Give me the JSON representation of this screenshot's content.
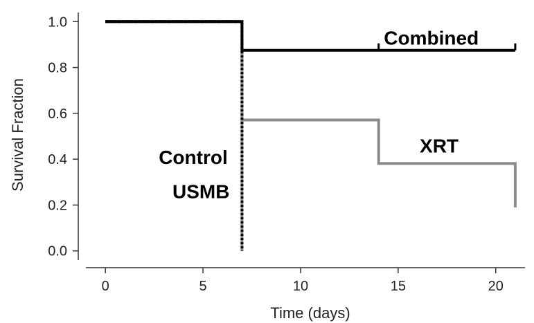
{
  "chart_data": {
    "type": "line",
    "subtype": "kaplan-meier-step",
    "xlabel": "Time (days)",
    "ylabel": "Survival Fraction",
    "xlim": [
      -1,
      21.5
    ],
    "ylim": [
      -0.04,
      1.04
    ],
    "xticks": [
      0,
      5,
      10,
      15,
      20
    ],
    "yticks": [
      0.0,
      0.2,
      0.4,
      0.6,
      0.8,
      1.0
    ],
    "ytick_labels": [
      "0.0",
      "0.2",
      "0.4",
      "0.6",
      "0.8",
      "1.0"
    ],
    "grid": false,
    "series": [
      {
        "name": "Combined",
        "color": "#000000",
        "style": "solid",
        "x": [
          0,
          7,
          7,
          21
        ],
        "y": [
          1.0,
          1.0,
          0.875,
          0.875
        ],
        "censored": [
          [
            14,
            0.875
          ],
          [
            21,
            0.875
          ]
        ]
      },
      {
        "name": "XRT",
        "color": "#8a8a8a",
        "style": "solid",
        "x": [
          0,
          7,
          7,
          14,
          14,
          21,
          21
        ],
        "y": [
          1.0,
          1.0,
          0.571,
          0.571,
          0.381,
          0.381,
          0.19
        ],
        "censored": []
      },
      {
        "name": "Control",
        "color": "#000000",
        "style": "dotted",
        "x": [
          0,
          7,
          7
        ],
        "y": [
          1.0,
          1.0,
          0.0
        ],
        "censored": []
      },
      {
        "name": "USMB",
        "color": "#8a8a8a",
        "style": "solid",
        "x": [
          0,
          7,
          7
        ],
        "y": [
          1.0,
          1.0,
          0.0
        ],
        "censored": []
      }
    ],
    "annotations": [
      {
        "text": "Combined",
        "x": 16.7,
        "y": 0.93
      },
      {
        "text": "XRT",
        "x": 17.1,
        "y": 0.46
      },
      {
        "text": "Control",
        "x": 4.5,
        "y": 0.41
      },
      {
        "text": "USMB",
        "x": 4.9,
        "y": 0.26
      }
    ]
  }
}
